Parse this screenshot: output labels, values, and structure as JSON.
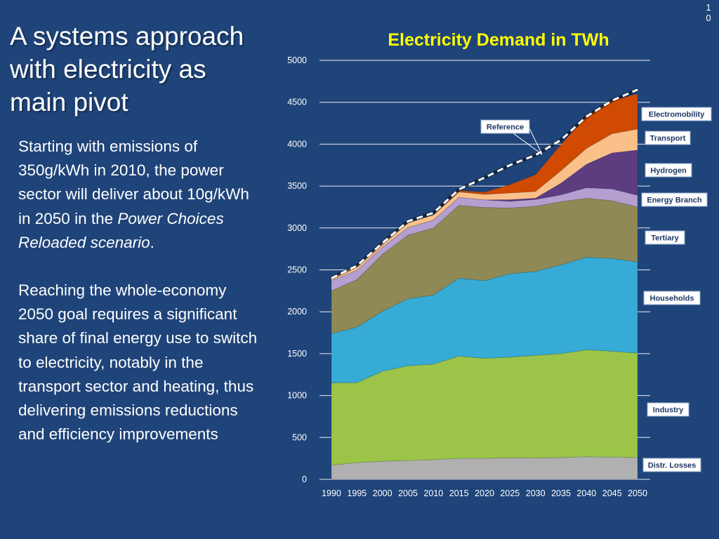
{
  "slide": {
    "number": "10",
    "title": "A systems approach with electricity as main pivot",
    "body": {
      "p1_a": "Starting with emissions of 350g/kWh in 2010, the power sector will deliver about 10g/kWh in 2050 in the ",
      "p1_italic": "Power Choices Reloaded scenario",
      "p1_b": ".",
      "p2": "Reaching the whole-economy 2050 goal requires a significant share of final energy use to switch to electricity, notably in the transport sector and heating, thus delivering emissions reductions and efficiency improvements"
    }
  },
  "chart_data": {
    "type": "area",
    "stacked": true,
    "title": "Electricity Demand in TWh",
    "xlabel": "",
    "ylabel": "",
    "ylim": [
      0,
      5000
    ],
    "yticks": [
      0,
      500,
      1000,
      1500,
      2000,
      2500,
      3000,
      3500,
      4000,
      4500,
      5000
    ],
    "grid": true,
    "x": [
      "1990",
      "1995",
      "2000",
      "2005",
      "2010",
      "2015",
      "2020",
      "2025",
      "2030",
      "2035",
      "2040",
      "2045",
      "2050"
    ],
    "series": [
      {
        "name": "Distr. Losses",
        "color": "#b0b0b0",
        "values": [
          170,
          200,
          215,
          225,
          235,
          250,
          250,
          258,
          255,
          260,
          270,
          265,
          260
        ]
      },
      {
        "name": "Industry",
        "color": "#9bc448",
        "values": [
          980,
          955,
          1075,
          1130,
          1140,
          1220,
          1195,
          1200,
          1225,
          1240,
          1275,
          1265,
          1245
        ]
      },
      {
        "name": "Households",
        "color": "#35abd5",
        "values": [
          590,
          660,
          715,
          800,
          825,
          930,
          925,
          995,
          1000,
          1060,
          1105,
          1105,
          1090
        ]
      },
      {
        "name": "Tertiary",
        "color": "#8f8955",
        "values": [
          510,
          570,
          680,
          760,
          800,
          870,
          875,
          785,
          780,
          755,
          705,
          690,
          655
        ]
      },
      {
        "name": "Energy Branch",
        "color": "#b49fd0",
        "values": [
          120,
          110,
          85,
          90,
          95,
          95,
          90,
          80,
          80,
          80,
          125,
          140,
          140
        ]
      },
      {
        "name": "Hydrogen",
        "color": "#5d3d80",
        "values": [
          0,
          0,
          0,
          0,
          0,
          0,
          0,
          20,
          15,
          140,
          280,
          430,
          540
        ]
      },
      {
        "name": "Transport",
        "color": "#f9c08a",
        "values": [
          35,
          45,
          50,
          55,
          60,
          65,
          65,
          80,
          80,
          150,
          190,
          230,
          250
        ]
      },
      {
        "name": "Electromobility",
        "color": "#d04a02",
        "values": [
          0,
          0,
          0,
          0,
          0,
          15,
          25,
          100,
          200,
          310,
          385,
          395,
          420
        ]
      }
    ],
    "reference": {
      "name": "Reference",
      "values": [
        2400,
        2550,
        2820,
        3080,
        3180,
        3460,
        3600,
        3750,
        3870,
        4050,
        4330,
        4520,
        4650
      ]
    },
    "labels": [
      "Electromobility",
      "Transport",
      "Hydrogen",
      "Energy Branch",
      "Tertiary",
      "Households",
      "Industry",
      "Distr. Losses",
      "Reference"
    ]
  }
}
